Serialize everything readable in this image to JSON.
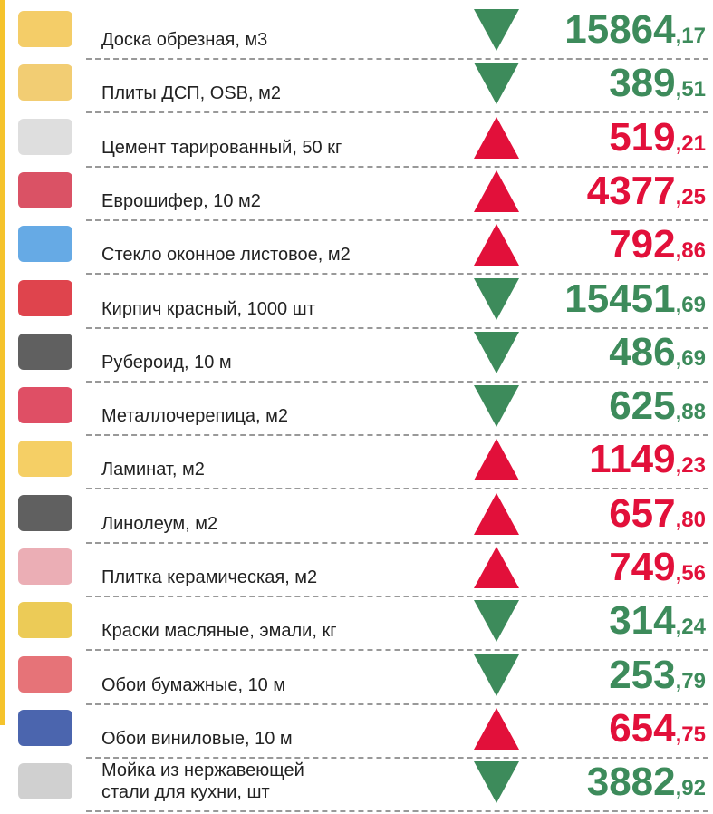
{
  "items": [
    {
      "label": "Доска обрезная, м3",
      "int": "15864",
      "frac": ",17",
      "direction": "down"
    },
    {
      "label": "Плиты ДСП, OSB, м2",
      "int": "389",
      "frac": ",51",
      "direction": "down"
    },
    {
      "label": "Цемент тарированный, 50 кг",
      "int": "519",
      "frac": ",21",
      "direction": "up"
    },
    {
      "label": "Еврошифер, 10 м2",
      "int": "4377",
      "frac": ",25",
      "direction": "up"
    },
    {
      "label": "Стекло оконное листовое, м2",
      "int": "792",
      "frac": ",86",
      "direction": "up"
    },
    {
      "label": "Кирпич красный, 1000 шт",
      "int": "15451",
      "frac": ",69",
      "direction": "down"
    },
    {
      "label": "Рубероид, 10 м",
      "int": "486",
      "frac": ",69",
      "direction": "down"
    },
    {
      "label": "Металлочерепица, м2",
      "int": "625",
      "frac": ",88",
      "direction": "down"
    },
    {
      "label": "Ламинат, м2",
      "int": "1149",
      "frac": ",23",
      "direction": "up"
    },
    {
      "label": "Линолеум, м2",
      "int": "657",
      "frac": ",80",
      "direction": "up"
    },
    {
      "label": "Плитка керамическая, м2",
      "int": "749",
      "frac": ",56",
      "direction": "up"
    },
    {
      "label": "Краски масляные, эмали, кг",
      "int": "314",
      "frac": ",24",
      "direction": "down"
    },
    {
      "label": "Обои бумажные, 10 м",
      "int": "253",
      "frac": ",79",
      "direction": "down"
    },
    {
      "label": "Обои виниловые, 10 м",
      "int": "654",
      "frac": ",75",
      "direction": "up"
    },
    {
      "label": "Мойка из нержавеющей\nстали для кухни, шт",
      "int": "3882",
      "frac": ",92",
      "direction": "down"
    }
  ],
  "colors": {
    "up": "#e2103a",
    "down": "#3d8b5b"
  }
}
